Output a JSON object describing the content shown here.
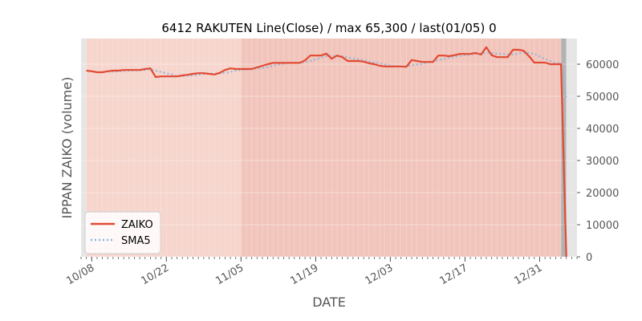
{
  "chart_data": {
    "type": "line",
    "title": "6412 RAKUTEN Line(Close) / max 65,300 / last(01/05) 0",
    "xlabel": "DATE",
    "ylabel": "IPPAN ZAIKO (volume)",
    "ylim": [
      0,
      68000
    ],
    "x_start": "2018-10-06",
    "x_end": "2019-01-07",
    "yticks": [
      0,
      10000,
      20000,
      30000,
      40000,
      50000,
      60000
    ],
    "ytick_labels": [
      "0",
      "10000",
      "20000",
      "30000",
      "40000",
      "50000",
      "60000"
    ],
    "xticks": [
      "2018-10-08",
      "2018-10-22",
      "2018-11-05",
      "2018-11-19",
      "2018-12-03",
      "2018-12-17",
      "2018-12-31"
    ],
    "xtick_labels": [
      "10/08",
      "10/22",
      "11/05",
      "11/19",
      "12/03",
      "12/17",
      "12/31"
    ],
    "legend_position": "lower-left",
    "grid": true,
    "series": [
      {
        "name": "ZAIKO",
        "color": "#e24a33",
        "style": "solid",
        "points": [
          [
            "2018-10-07",
            58000
          ],
          [
            "2018-10-08",
            57800
          ],
          [
            "2018-10-09",
            57500
          ],
          [
            "2018-10-10",
            57500
          ],
          [
            "2018-10-11",
            57800
          ],
          [
            "2018-10-12",
            58000
          ],
          [
            "2018-10-13",
            58000
          ],
          [
            "2018-10-14",
            58200
          ],
          [
            "2018-10-15",
            58200
          ],
          [
            "2018-10-16",
            58200
          ],
          [
            "2018-10-17",
            58200
          ],
          [
            "2018-10-18",
            58500
          ],
          [
            "2018-10-19",
            58700
          ],
          [
            "2018-10-20",
            56000
          ],
          [
            "2018-10-21",
            56200
          ],
          [
            "2018-10-22",
            56200
          ],
          [
            "2018-10-23",
            56200
          ],
          [
            "2018-10-24",
            56200
          ],
          [
            "2018-10-25",
            56500
          ],
          [
            "2018-10-26",
            56700
          ],
          [
            "2018-10-27",
            57000
          ],
          [
            "2018-10-28",
            57200
          ],
          [
            "2018-10-29",
            57200
          ],
          [
            "2018-10-30",
            57000
          ],
          [
            "2018-10-31",
            56800
          ],
          [
            "2018-11-01",
            57300
          ],
          [
            "2018-11-02",
            58200
          ],
          [
            "2018-11-03",
            58700
          ],
          [
            "2018-11-04",
            58500
          ],
          [
            "2018-11-05",
            58500
          ],
          [
            "2018-11-06",
            58500
          ],
          [
            "2018-11-07",
            58500
          ],
          [
            "2018-11-08",
            59000
          ],
          [
            "2018-11-09",
            59500
          ],
          [
            "2018-11-10",
            60000
          ],
          [
            "2018-11-11",
            60400
          ],
          [
            "2018-11-12",
            60400
          ],
          [
            "2018-11-13",
            60400
          ],
          [
            "2018-11-14",
            60400
          ],
          [
            "2018-11-15",
            60400
          ],
          [
            "2018-11-16",
            60400
          ],
          [
            "2018-11-17",
            61200
          ],
          [
            "2018-11-18",
            62700
          ],
          [
            "2018-11-19",
            62700
          ],
          [
            "2018-11-20",
            62700
          ],
          [
            "2018-11-21",
            63300
          ],
          [
            "2018-11-22",
            61700
          ],
          [
            "2018-11-23",
            62700
          ],
          [
            "2018-11-24",
            62200
          ],
          [
            "2018-11-25",
            61000
          ],
          [
            "2018-11-26",
            61000
          ],
          [
            "2018-11-27",
            61000
          ],
          [
            "2018-11-28",
            60800
          ],
          [
            "2018-11-29",
            60300
          ],
          [
            "2018-11-30",
            60000
          ],
          [
            "2018-12-01",
            59500
          ],
          [
            "2018-12-02",
            59300
          ],
          [
            "2018-12-03",
            59300
          ],
          [
            "2018-12-04",
            59300
          ],
          [
            "2018-12-05",
            59300
          ],
          [
            "2018-12-06",
            59200
          ],
          [
            "2018-12-07",
            61300
          ],
          [
            "2018-12-08",
            61000
          ],
          [
            "2018-12-09",
            60700
          ],
          [
            "2018-12-10",
            60700
          ],
          [
            "2018-12-11",
            60700
          ],
          [
            "2018-12-12",
            62700
          ],
          [
            "2018-12-13",
            62700
          ],
          [
            "2018-12-14",
            62500
          ],
          [
            "2018-12-15",
            62800
          ],
          [
            "2018-12-16",
            63200
          ],
          [
            "2018-12-17",
            63200
          ],
          [
            "2018-12-18",
            63200
          ],
          [
            "2018-12-19",
            63500
          ],
          [
            "2018-12-20",
            63000
          ],
          [
            "2018-12-21",
            65300
          ],
          [
            "2018-12-22",
            62800
          ],
          [
            "2018-12-23",
            62200
          ],
          [
            "2018-12-24",
            62200
          ],
          [
            "2018-12-25",
            62200
          ],
          [
            "2018-12-26",
            64500
          ],
          [
            "2018-12-27",
            64500
          ],
          [
            "2018-12-28",
            64200
          ],
          [
            "2018-12-29",
            62500
          ],
          [
            "2018-12-30",
            60500
          ],
          [
            "2018-12-31",
            60500
          ],
          [
            "2019-01-01",
            60500
          ],
          [
            "2019-01-02",
            60000
          ],
          [
            "2019-01-03",
            60000
          ],
          [
            "2019-01-04",
            60000
          ],
          [
            "2019-01-05",
            0
          ]
        ]
      },
      {
        "name": "SMA5",
        "color": "#8eb6d9",
        "style": "dotted",
        "points": [
          [
            "2018-10-11",
            57700
          ],
          [
            "2018-10-12",
            57700
          ],
          [
            "2018-10-13",
            57800
          ],
          [
            "2018-10-14",
            57900
          ],
          [
            "2018-10-15",
            58000
          ],
          [
            "2018-10-16",
            58100
          ],
          [
            "2018-10-17",
            58100
          ],
          [
            "2018-10-18",
            58200
          ],
          [
            "2018-10-19",
            58400
          ],
          [
            "2018-10-20",
            58000
          ],
          [
            "2018-10-21",
            57600
          ],
          [
            "2018-10-22",
            57100
          ],
          [
            "2018-10-23",
            56800
          ],
          [
            "2018-10-24",
            56200
          ],
          [
            "2018-10-25",
            56300
          ],
          [
            "2018-10-26",
            56400
          ],
          [
            "2018-10-27",
            56500
          ],
          [
            "2018-10-28",
            56700
          ],
          [
            "2018-10-29",
            56900
          ],
          [
            "2018-10-30",
            57000
          ],
          [
            "2018-10-31",
            57000
          ],
          [
            "2018-11-01",
            57100
          ],
          [
            "2018-11-02",
            57300
          ],
          [
            "2018-11-03",
            57600
          ],
          [
            "2018-11-04",
            58000
          ],
          [
            "2018-11-05",
            58200
          ],
          [
            "2018-11-06",
            58300
          ],
          [
            "2018-11-07",
            58500
          ],
          [
            "2018-11-08",
            58600
          ],
          [
            "2018-11-09",
            58800
          ],
          [
            "2018-11-10",
            59100
          ],
          [
            "2018-11-11",
            59500
          ],
          [
            "2018-11-12",
            59900
          ],
          [
            "2018-11-13",
            60200
          ],
          [
            "2018-11-14",
            60400
          ],
          [
            "2018-11-15",
            60400
          ],
          [
            "2018-11-16",
            60400
          ],
          [
            "2018-11-17",
            60600
          ],
          [
            "2018-11-18",
            61000
          ],
          [
            "2018-11-19",
            61500
          ],
          [
            "2018-11-20",
            62000
          ],
          [
            "2018-11-21",
            62500
          ],
          [
            "2018-11-22",
            62600
          ],
          [
            "2018-11-23",
            62500
          ],
          [
            "2018-11-24",
            62500
          ],
          [
            "2018-11-25",
            62200
          ],
          [
            "2018-11-26",
            61700
          ],
          [
            "2018-11-27",
            61600
          ],
          [
            "2018-11-28",
            61300
          ],
          [
            "2018-11-29",
            60800
          ],
          [
            "2018-11-30",
            60600
          ],
          [
            "2018-12-01",
            60300
          ],
          [
            "2018-12-02",
            59900
          ],
          [
            "2018-12-03",
            59600
          ],
          [
            "2018-12-04",
            59400
          ],
          [
            "2018-12-05",
            59300
          ],
          [
            "2018-12-06",
            59300
          ],
          [
            "2018-12-07",
            59700
          ],
          [
            "2018-12-08",
            59900
          ],
          [
            "2018-12-09",
            60100
          ],
          [
            "2018-12-10",
            60500
          ],
          [
            "2018-12-11",
            60900
          ],
          [
            "2018-12-12",
            61200
          ],
          [
            "2018-12-13",
            61600
          ],
          [
            "2018-12-14",
            62000
          ],
          [
            "2018-12-15",
            62300
          ],
          [
            "2018-12-16",
            62600
          ],
          [
            "2018-12-17",
            62800
          ],
          [
            "2018-12-18",
            63000
          ],
          [
            "2018-12-19",
            63200
          ],
          [
            "2018-12-20",
            63200
          ],
          [
            "2018-12-21",
            63600
          ],
          [
            "2018-12-22",
            63400
          ],
          [
            "2018-12-23",
            63300
          ],
          [
            "2018-12-24",
            63200
          ],
          [
            "2018-12-25",
            63000
          ],
          [
            "2018-12-26",
            63000
          ],
          [
            "2018-12-27",
            63300
          ],
          [
            "2018-12-28",
            63600
          ],
          [
            "2018-12-29",
            63500
          ],
          [
            "2018-12-30",
            63200
          ],
          [
            "2018-12-31",
            62400
          ],
          [
            "2019-01-01",
            61600
          ],
          [
            "2019-01-02",
            61000
          ],
          [
            "2019-01-03",
            60400
          ],
          [
            "2019-01-04",
            60200
          ],
          [
            "2019-01-05",
            49000
          ]
        ]
      }
    ],
    "background": {
      "outer": "#e5e5e5",
      "bands": [
        {
          "from": "2018-10-07",
          "to": "2018-11-05",
          "color": "#f6d5cd"
        },
        {
          "from": "2018-11-05",
          "to": "2019-01-04",
          "color": "#f1c5bb"
        },
        {
          "from": "2019-01-04",
          "to": "2019-01-05",
          "color": "#b2b2b2"
        }
      ]
    }
  }
}
